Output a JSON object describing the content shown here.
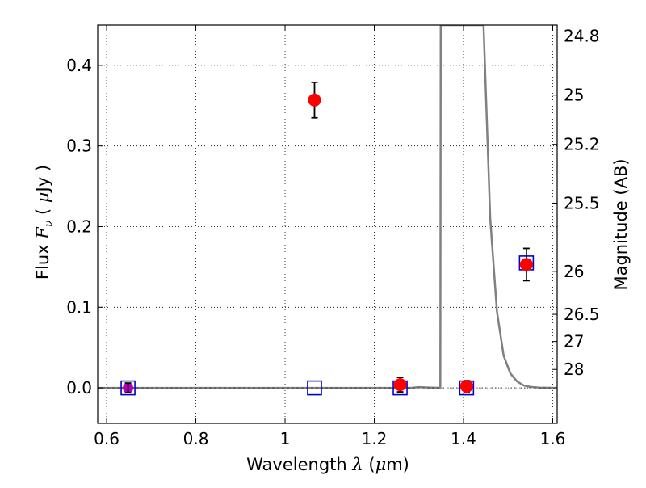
{
  "chart_data": {
    "type": "scatter",
    "title": "",
    "xlabel": {
      "pre": "Wavelength ",
      "sym": "λ",
      "mid": " (",
      "unit_mu": "μ",
      "unit_rest": "m)"
    },
    "ylabel": {
      "pre": "Flux ",
      "sym": "F",
      "sub": "ν",
      "mid": " ( ",
      "unit_mu": "μ",
      "unit_rest": "Jy )"
    },
    "y2label": "Magnitude (AB)",
    "xlim": [
      0.58,
      1.61
    ],
    "ylim": [
      -0.044,
      0.45
    ],
    "grid": true,
    "xticks": [
      {
        "value": 0.6,
        "label": "0.6"
      },
      {
        "value": 0.8,
        "label": "0.8"
      },
      {
        "value": 1.0,
        "label": "1"
      },
      {
        "value": 1.2,
        "label": "1.2"
      },
      {
        "value": 1.4,
        "label": "1.4"
      },
      {
        "value": 1.6,
        "label": "1.6"
      }
    ],
    "yticks": [
      {
        "value": 0.0,
        "label": "0.0"
      },
      {
        "value": 0.1,
        "label": "0.1"
      },
      {
        "value": 0.2,
        "label": "0.2"
      },
      {
        "value": 0.3,
        "label": "0.3"
      },
      {
        "value": 0.4,
        "label": "0.4"
      }
    ],
    "y2ticks": [
      {
        "value": 24.8,
        "label": "24.8"
      },
      {
        "value": 25.0,
        "label": "25"
      },
      {
        "value": 25.2,
        "label": "25.2"
      },
      {
        "value": 25.5,
        "label": "25.5"
      },
      {
        "value": 26.0,
        "label": "26"
      },
      {
        "value": 26.5,
        "label": "26.5"
      },
      {
        "value": 27.0,
        "label": "27"
      },
      {
        "value": 28.0,
        "label": "28"
      }
    ],
    "colors": {
      "observed": "#ff0000",
      "model": "#0000cc",
      "template": "#808080",
      "special": "#b000b0"
    },
    "series": [
      {
        "kind": "observed_flux",
        "x": [
          0.648,
          1.066,
          1.258,
          1.407,
          1.541
        ],
        "y": [
          0.0,
          0.357,
          0.004,
          0.002,
          0.153
        ],
        "yerr": [
          0.0,
          0.022,
          0.009,
          0.007,
          0.02
        ]
      },
      {
        "kind": "model_flux",
        "x": [
          0.648,
          1.066,
          1.258,
          1.407,
          1.541
        ],
        "y": [
          0.0,
          0.0,
          0.0,
          0.0,
          0.155
        ]
      },
      {
        "kind": "template_spectrum",
        "x": [
          0.58,
          1.2,
          1.28,
          1.3,
          1.32,
          1.34,
          1.348,
          1.349,
          1.351,
          1.44,
          1.445,
          1.46,
          1.475,
          1.49,
          1.505,
          1.52,
          1.535,
          1.55,
          1.57,
          1.61
        ],
        "y": [
          0.0,
          0.0,
          0.0,
          0.001,
          0.0005,
          0.0002,
          0.0,
          0.45,
          0.45,
          0.45,
          0.45,
          0.21,
          0.095,
          0.04,
          0.018,
          0.008,
          0.003,
          0.0012,
          0.0004,
          0.0
        ]
      }
    ],
    "special_point": {
      "x": 0.648,
      "y": 0.0,
      "yerr": 0.006
    }
  }
}
